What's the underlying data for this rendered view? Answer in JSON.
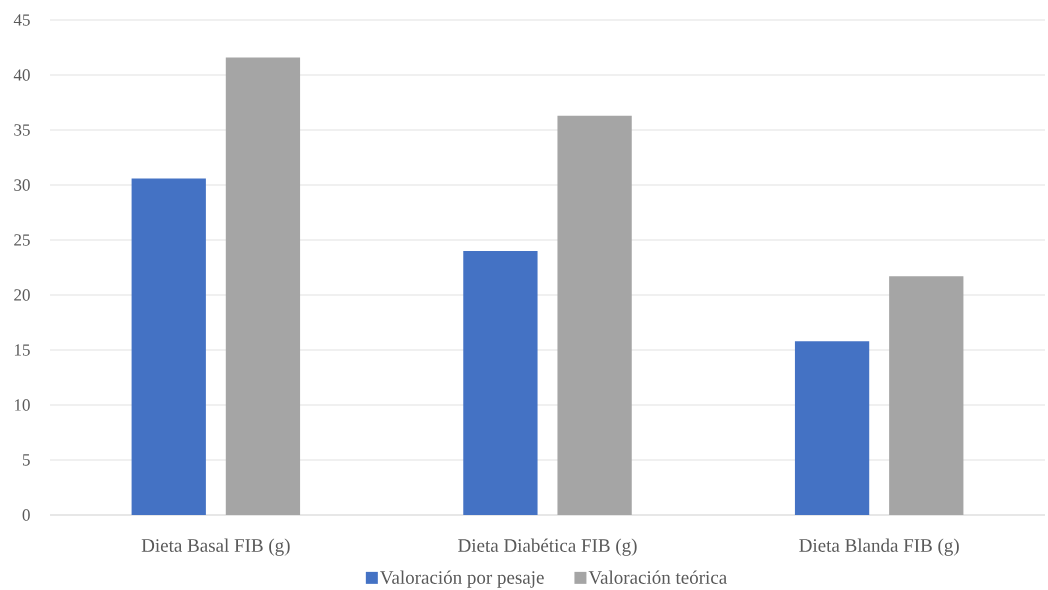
{
  "chart_data": {
    "type": "bar",
    "categories": [
      "Dieta Basal FIB (g)",
      "Dieta Diabética FIB (g)",
      "Dieta Blanda FIB (g)"
    ],
    "series": [
      {
        "name": "Valoración por pesaje",
        "color": "#4472c4",
        "values": [
          30.6,
          24.0,
          15.8
        ]
      },
      {
        "name": "Valoración teórica",
        "color": "#a5a5a5",
        "values": [
          41.6,
          36.3,
          21.7
        ]
      }
    ],
    "ylim": [
      0,
      45
    ],
    "yticks": [
      0,
      5,
      10,
      15,
      20,
      25,
      30,
      35,
      40,
      45
    ],
    "grid": "y",
    "legend": "bottom"
  }
}
